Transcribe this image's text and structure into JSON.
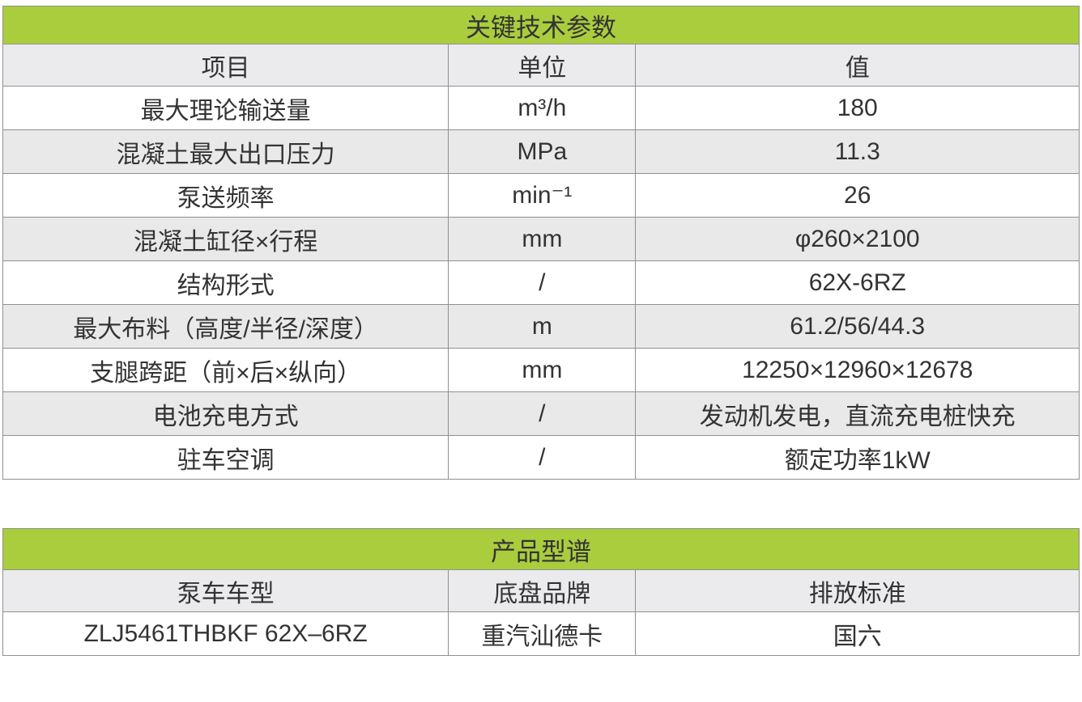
{
  "accent_color": "#aacd3e",
  "tables": [
    {
      "title": "关键技术参数",
      "columns": [
        "项目",
        "单位",
        "值"
      ],
      "rows": [
        [
          "最大理论输送量",
          "m³/h",
          "180"
        ],
        [
          "混凝土最大出口压力",
          "MPa",
          "11.3"
        ],
        [
          "泵送频率",
          "min⁻¹",
          "26"
        ],
        [
          "混凝土缸径×行程",
          "mm",
          "φ260×2100"
        ],
        [
          "结构形式",
          "/",
          "62X-6RZ"
        ],
        [
          "最大布料（高度/半径/深度）",
          "m",
          "61.2/56/44.3"
        ],
        [
          "支腿跨距（前×后×纵向）",
          "mm",
          "12250×12960×12678"
        ],
        [
          "电池充电方式",
          "/",
          "发动机发电，直流充电桩快充"
        ],
        [
          "驻车空调",
          "/",
          "额定功率1kW"
        ]
      ]
    },
    {
      "title": "产品型谱",
      "columns": [
        "泵车车型",
        "底盘品牌",
        "排放标准"
      ],
      "rows": [
        [
          "ZLJ5461THBKF 62X–6RZ",
          "重汽汕德卡",
          "国六"
        ]
      ]
    }
  ]
}
